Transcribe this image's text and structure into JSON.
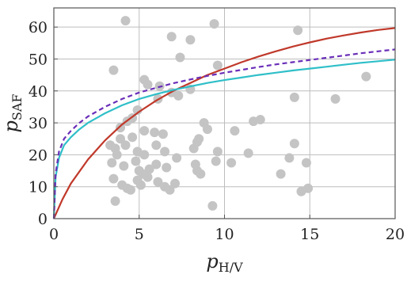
{
  "chart_data": {
    "type": "scatter",
    "title": "",
    "xlabel": {
      "main": "p",
      "sub": "H/V"
    },
    "ylabel": {
      "main": "p",
      "sub": "SAF"
    },
    "xlim": [
      0,
      20
    ],
    "ylim": [
      0,
      66
    ],
    "xticks": [
      0,
      5,
      10,
      15,
      20
    ],
    "yticks": [
      0,
      10,
      20,
      30,
      40,
      50,
      60
    ],
    "grid": true,
    "legend": "none",
    "colors": {
      "points": "#c4c4c4",
      "red_curve": "#c0392b",
      "cyan_curve": "#2fbfc8",
      "dashed_curve": "#6a2fb8"
    },
    "points": [
      [
        4.2,
        62
      ],
      [
        9.4,
        61
      ],
      [
        6.9,
        57
      ],
      [
        8.0,
        56
      ],
      [
        14.3,
        59
      ],
      [
        7.4,
        50.5
      ],
      [
        9.6,
        48
      ],
      [
        3.5,
        46.5
      ],
      [
        18.3,
        44.5
      ],
      [
        5.3,
        43.5
      ],
      [
        5.5,
        42
      ],
      [
        6.2,
        41.5
      ],
      [
        8.0,
        40.5
      ],
      [
        6.9,
        39.5
      ],
      [
        7.3,
        38.5
      ],
      [
        6.1,
        37.5
      ],
      [
        16.5,
        37.5
      ],
      [
        14.1,
        38
      ],
      [
        4.9,
        34
      ],
      [
        4.6,
        31.5
      ],
      [
        4.3,
        30.5
      ],
      [
        3.9,
        28.5
      ],
      [
        5.3,
        27.5
      ],
      [
        5.9,
        27
      ],
      [
        6.4,
        26.5
      ],
      [
        8.8,
        30
      ],
      [
        9.0,
        28
      ],
      [
        8.5,
        25
      ],
      [
        11.7,
        30.5
      ],
      [
        12.1,
        31
      ],
      [
        10.6,
        27.5
      ],
      [
        3.3,
        23
      ],
      [
        3.6,
        22
      ],
      [
        3.9,
        25
      ],
      [
        4.2,
        23
      ],
      [
        4.6,
        25.5
      ],
      [
        4.9,
        21
      ],
      [
        5.3,
        20
      ],
      [
        6.0,
        23
      ],
      [
        6.5,
        21
      ],
      [
        8.2,
        22
      ],
      [
        8.4,
        24
      ],
      [
        9.6,
        21
      ],
      [
        14.1,
        23.5
      ],
      [
        3.7,
        20
      ],
      [
        3.4,
        17.5
      ],
      [
        4.1,
        16.5
      ],
      [
        4.8,
        18
      ],
      [
        5.0,
        15
      ],
      [
        5.2,
        14
      ],
      [
        5.6,
        15.5
      ],
      [
        6.0,
        17
      ],
      [
        6.6,
        16
      ],
      [
        7.2,
        19
      ],
      [
        8.3,
        17
      ],
      [
        9.5,
        18
      ],
      [
        10.4,
        17.5
      ],
      [
        11.4,
        20.5
      ],
      [
        13.8,
        19
      ],
      [
        14.8,
        17.5
      ],
      [
        3.5,
        12.5
      ],
      [
        4.0,
        10.5
      ],
      [
        4.5,
        9
      ],
      [
        4.9,
        12
      ],
      [
        5.1,
        10.5
      ],
      [
        5.5,
        13
      ],
      [
        6.1,
        11.5
      ],
      [
        6.5,
        10
      ],
      [
        6.8,
        9
      ],
      [
        7.1,
        11
      ],
      [
        8.4,
        15
      ],
      [
        8.6,
        14
      ],
      [
        13.3,
        14
      ],
      [
        14.5,
        8.5
      ],
      [
        14.9,
        9.5
      ],
      [
        3.6,
        5.5
      ],
      [
        4.3,
        9.5
      ],
      [
        9.3,
        4
      ]
    ],
    "curves": [
      {
        "id": "red",
        "style": "solid",
        "x": [
          0,
          0.5,
          1,
          2,
          3,
          4,
          5,
          6,
          7,
          8,
          9,
          10,
          11,
          12,
          13,
          14,
          15,
          16,
          17,
          18,
          19,
          20
        ],
        "y": [
          0,
          6,
          11,
          18.5,
          24.5,
          29.5,
          33.5,
          37,
          40,
          42.5,
          45,
          47,
          49,
          50.8,
          52.4,
          53.9,
          55.2,
          56.4,
          57.4,
          58.3,
          59.1,
          59.7
        ]
      },
      {
        "id": "cyan",
        "style": "solid",
        "x": [
          0,
          0.1,
          0.3,
          0.6,
          1,
          1.5,
          2,
          3,
          4,
          5,
          6,
          7,
          8,
          9,
          10,
          11,
          12,
          13,
          14,
          15,
          16,
          17,
          18,
          19,
          20
        ],
        "y": [
          0,
          13,
          19,
          23,
          25.5,
          28,
          30,
          33,
          35.5,
          37.5,
          39,
          40.3,
          41.4,
          42.5,
          43.4,
          44.2,
          45,
          45.7,
          46.4,
          47,
          47.6,
          48.2,
          48.8,
          49.3,
          49.8
        ]
      },
      {
        "id": "dashed",
        "style": "dashed",
        "x": [
          0,
          0.1,
          0.3,
          0.6,
          1,
          1.5,
          2,
          3,
          4,
          5,
          6,
          7,
          8,
          9,
          10,
          11,
          12,
          13,
          14,
          15,
          16,
          17,
          18,
          19,
          20
        ],
        "y": [
          0,
          14,
          21,
          25,
          27.5,
          30,
          32,
          35,
          37.5,
          39.5,
          41,
          42.4,
          43.6,
          44.7,
          45.7,
          46.6,
          47.5,
          48.3,
          49,
          49.7,
          50.4,
          51.1,
          51.8,
          52.4,
          53
        ]
      }
    ]
  }
}
